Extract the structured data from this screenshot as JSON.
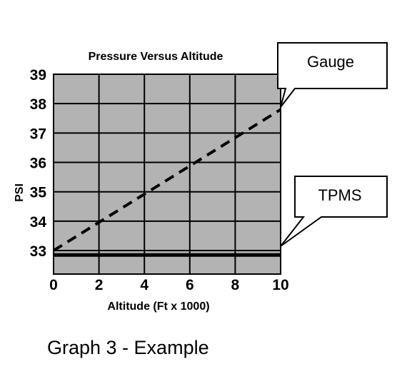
{
  "chart_data": {
    "type": "line",
    "title": "Pressure Versus Altitude",
    "xlabel": "Altitude (Ft x 1000)",
    "ylabel": "PSI",
    "xlim": [
      0,
      10
    ],
    "ylim": [
      32.2,
      39
    ],
    "xticks": [
      "0",
      "2",
      "4",
      "6",
      "8",
      "10"
    ],
    "yticks": [
      "33",
      "34",
      "35",
      "36",
      "37",
      "38",
      "39"
    ],
    "grid": true,
    "background": "#b3b3b3",
    "series": [
      {
        "name": "Gauge",
        "style": "dashed",
        "color": "#000000",
        "x": [
          0,
          10
        ],
        "y": [
          33.0,
          37.8
        ]
      },
      {
        "name": "TPMS",
        "style": "solid",
        "color": "#000000",
        "x": [
          0,
          10
        ],
        "y": [
          32.85,
          32.85
        ]
      }
    ]
  },
  "callouts": {
    "gauge": "Gauge",
    "tpms": "TPMS"
  },
  "caption": "Graph 3 - Example"
}
